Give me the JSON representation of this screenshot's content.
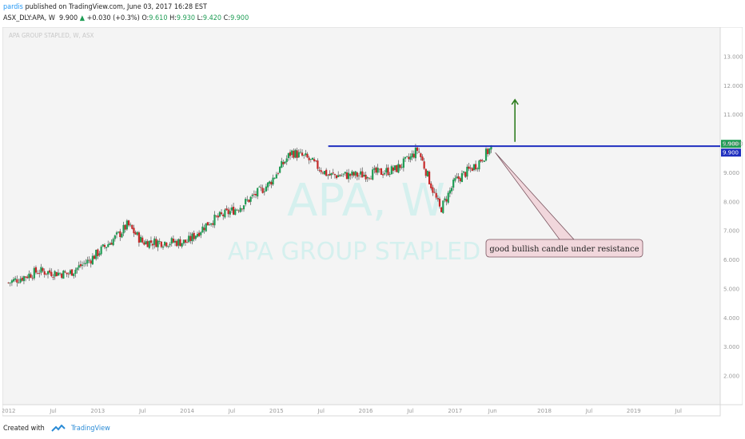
{
  "header": {
    "author": "pardis",
    "published": "published on TradingView.com, June 03, 2017 16:28 EST",
    "symbol": "ASX_DLY:APA, W",
    "last": "9.900",
    "change_arrow": "▲",
    "change": "+0.030 (+0.3%)",
    "o_label": "O:",
    "o_value": "9.610",
    "h_label": "H:",
    "h_value": "9.930",
    "l_label": "L:",
    "l_value": "9.420",
    "c_label": "C:",
    "c_value": "9.900"
  },
  "chart_label": "APA GROUP STAPLED, W, ASX",
  "watermark": {
    "symbol": "APA, W",
    "name": "APA GROUP STAPLED"
  },
  "annotation": {
    "text": "good bullish candle under resistance"
  },
  "footer": {
    "created_with": "Created with",
    "brand": "TradingView"
  },
  "colors": {
    "up": "#1f9d55",
    "down": "#c62828",
    "resistance": "#1f2fbf",
    "arrow": "#2e7d1f",
    "callout_bg": "#f1d7dc",
    "callout_border": "#7a5560",
    "watermark": "#d5f0ee",
    "grid": "#eeeeee"
  },
  "chart_data": {
    "type": "candlestick",
    "title": "APA GROUP STAPLED, W, ASX",
    "y_axis_ticks": [
      "13.000",
      "12.000",
      "11.000",
      "10.000",
      "9.000",
      "8.000",
      "7.000",
      "6.000",
      "5.000",
      "4.000",
      "3.000",
      "2.000"
    ],
    "x_axis_ticks": [
      "2012",
      "Jul",
      "2013",
      "Jul",
      "2014",
      "Jul",
      "2015",
      "Jul",
      "2016",
      "Jul",
      "2017",
      "Jun",
      "2018",
      "Jul",
      "2019",
      "Jul"
    ],
    "ylim": [
      1.0,
      14.0
    ],
    "price_path": [
      [
        "2012-01",
        5.2
      ],
      [
        "2012-05",
        5.6
      ],
      [
        "2012-09",
        5.5
      ],
      [
        "2012-12",
        6.0
      ],
      [
        "2013-04",
        6.9
      ],
      [
        "2013-05",
        7.2
      ],
      [
        "2013-07",
        6.6
      ],
      [
        "2013-10",
        6.6
      ],
      [
        "2014-01",
        6.6
      ],
      [
        "2014-04",
        7.3
      ],
      [
        "2014-08",
        7.8
      ],
      [
        "2014-12",
        8.6
      ],
      [
        "2015-03",
        9.7
      ],
      [
        "2015-05",
        9.5
      ],
      [
        "2015-08",
        8.9
      ],
      [
        "2015-12",
        8.9
      ],
      [
        "2016-03",
        9.0
      ],
      [
        "2016-05",
        9.1
      ],
      [
        "2016-07",
        9.5
      ],
      [
        "2016-08",
        9.8
      ],
      [
        "2016-11",
        7.7
      ],
      [
        "2017-01",
        8.7
      ],
      [
        "2017-04",
        9.3
      ],
      [
        "2017-06",
        9.9
      ]
    ],
    "resistance": 9.9,
    "price_labels": [
      "9.900",
      "9.900"
    ],
    "grid": false,
    "legend": "none"
  }
}
